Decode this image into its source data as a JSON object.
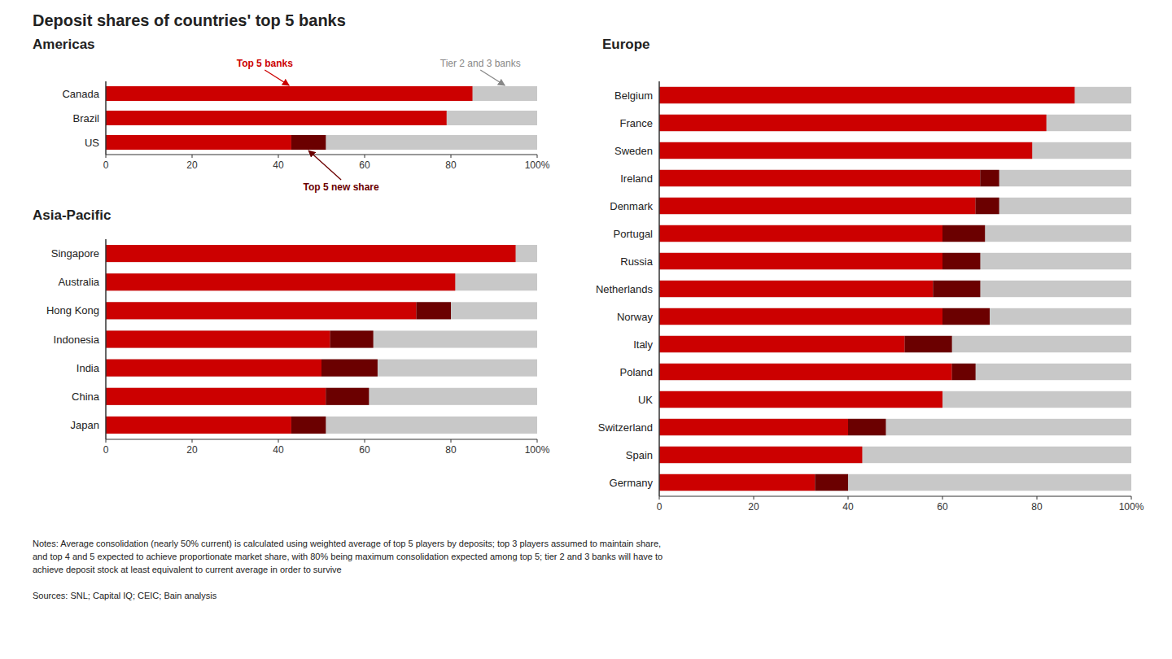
{
  "title": "Deposit shares of countries' top 5 banks",
  "notes": [
    "Notes: Average consolidation (nearly 50% current) is calculated using weighted average of top 5 players by deposits; top 3 players assumed to maintain share,",
    "and top 4 and 5 expected to achieve proportionate market share, with 80% being maximum consolidation expected among top 5; tier 2 and 3 banks will have to",
    "achieve deposit stock at least equivalent to current average in order to survive"
  ],
  "sources": "Sources: SNL; Capital IQ; CEIC; Bain analysis",
  "chart_data": [
    {
      "type": "bar",
      "orientation": "horizontal",
      "stacked": true,
      "title": "Americas",
      "categories": [
        "Canada",
        "Brazil",
        "US"
      ],
      "series": [
        {
          "name": "Tier 2 and 3 banks",
          "type": "background",
          "color": "#c8c8c8",
          "values": [
            100,
            100,
            100
          ]
        },
        {
          "name": "Top 5 banks",
          "type": "bar",
          "color": "#cc0000",
          "values": [
            85,
            79,
            43
          ]
        },
        {
          "name": "Top 5 new share",
          "type": "bar",
          "color": "#6b0000",
          "values": [
            0,
            0,
            8
          ]
        }
      ],
      "xlim": [
        0,
        100
      ],
      "xticks": [
        0,
        20,
        40,
        60,
        80,
        {
          "value": 100,
          "label": "100%"
        }
      ],
      "grid": false
    },
    {
      "type": "bar",
      "orientation": "horizontal",
      "stacked": true,
      "title": "Asia-Pacific",
      "categories": [
        "Singapore",
        "Australia",
        "Hong Kong",
        "Indonesia",
        "India",
        "China",
        "Japan"
      ],
      "series": [
        {
          "type": "background",
          "color": "#c8c8c8",
          "values": [
            100,
            100,
            100,
            100,
            100,
            100,
            100
          ]
        },
        {
          "type": "bar",
          "color": "#cc0000",
          "values": [
            95,
            81,
            72,
            52,
            50,
            51,
            43
          ]
        },
        {
          "type": "bar",
          "color": "#6b0000",
          "values": [
            0,
            0,
            8,
            10,
            13,
            10,
            8
          ]
        }
      ],
      "xlim": [
        0,
        100
      ],
      "xticks": [
        0,
        20,
        40,
        60,
        80,
        {
          "value": 100,
          "label": "100%"
        }
      ],
      "grid": false
    },
    {
      "type": "bar",
      "orientation": "horizontal",
      "stacked": true,
      "title": "Europe",
      "categories": [
        "Belgium",
        "France",
        "Sweden",
        "Ireland",
        "Denmark",
        "Portugal",
        "Russia",
        "Netherlands",
        "Norway",
        "Italy",
        "Poland",
        "UK",
        "Switzerland",
        "Spain",
        "Germany"
      ],
      "series": [
        {
          "type": "background",
          "color": "#c8c8c8",
          "values": [
            100,
            100,
            100,
            100,
            100,
            100,
            100,
            100,
            100,
            100,
            100,
            100,
            100,
            100,
            100
          ]
        },
        {
          "type": "bar",
          "color": "#cc0000",
          "values": [
            88,
            82,
            79,
            68,
            67,
            60,
            60,
            58,
            60,
            52,
            62,
            60,
            40,
            43,
            33
          ]
        },
        {
          "type": "bar",
          "color": "#6b0000",
          "values": [
            0,
            0,
            0,
            4,
            5,
            9,
            8,
            10,
            10,
            10,
            5,
            0,
            8,
            0,
            7
          ]
        }
      ],
      "xlim": [
        0,
        100
      ],
      "xticks": [
        0,
        20,
        40,
        60,
        80,
        {
          "value": 100,
          "label": "100%"
        }
      ],
      "grid": false
    }
  ]
}
